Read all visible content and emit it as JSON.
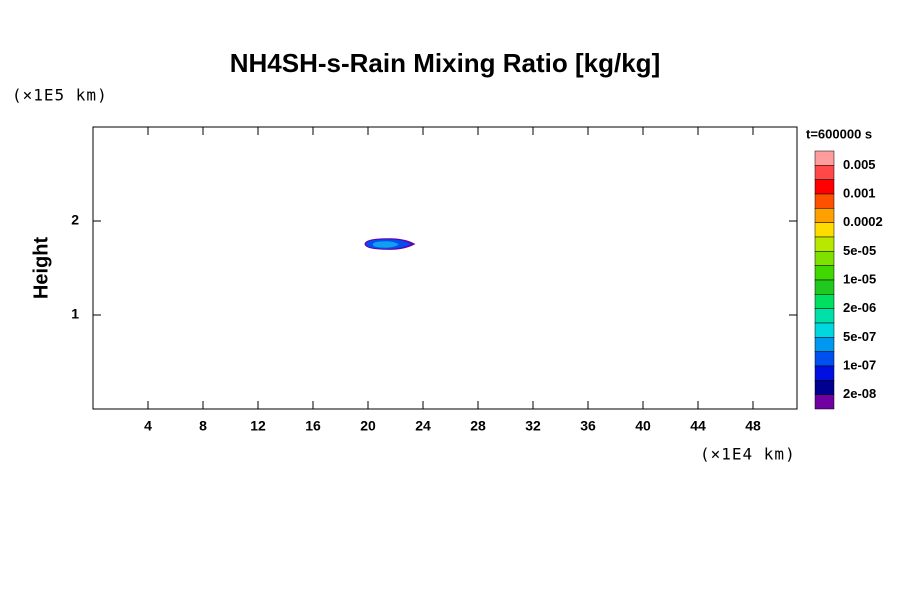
{
  "chart_data": {
    "type": "contour",
    "title": "NH4SH-s-Rain Mixing Ratio [kg/kg]",
    "y_label": "Height",
    "x_unit": "(×1E4 km)",
    "y_unit": "(×1E5 km)",
    "xlim": [
      0,
      51.2
    ],
    "ylim": [
      0,
      3
    ],
    "xticks": [
      4,
      8,
      12,
      16,
      20,
      24,
      28,
      32,
      36,
      40,
      44,
      48
    ],
    "yticks": [
      1,
      2
    ],
    "colorbar": {
      "title": "t=600000 s",
      "colors": [
        "#ff9c9c",
        "#ff4848",
        "#ff0000",
        "#ff5000",
        "#ffa000",
        "#ffdc00",
        "#b8e800",
        "#80e000",
        "#40d800",
        "#20c820",
        "#00e060",
        "#00e0a8",
        "#00d8e0",
        "#0098f0",
        "#0050f0",
        "#0010e0",
        "#000090",
        "#7000a0"
      ],
      "ticks": [
        0.005,
        0.001,
        0.0002,
        {
          "value": 5e-05,
          "label": "5e-05"
        },
        {
          "value": 1e-05,
          "label": "1e-05"
        },
        {
          "value": 2e-06,
          "label": "2e-06"
        },
        {
          "value": 5e-07,
          "label": "5e-07"
        },
        {
          "value": 1e-07,
          "label": "1e-07"
        },
        {
          "value": 2e-08,
          "label": "2e-08"
        }
      ]
    },
    "regions": [
      {
        "color": "#6000b0",
        "cx": 21.6,
        "cy": 1.755,
        "rx": 1.85,
        "ry": 0.062
      },
      {
        "color": "#0050f0",
        "cx": 21.5,
        "cy": 1.755,
        "rx": 1.65,
        "ry": 0.05
      },
      {
        "color": "#10a0f0",
        "cx": 21.3,
        "cy": 1.75,
        "rx": 0.95,
        "ry": 0.034
      }
    ]
  }
}
